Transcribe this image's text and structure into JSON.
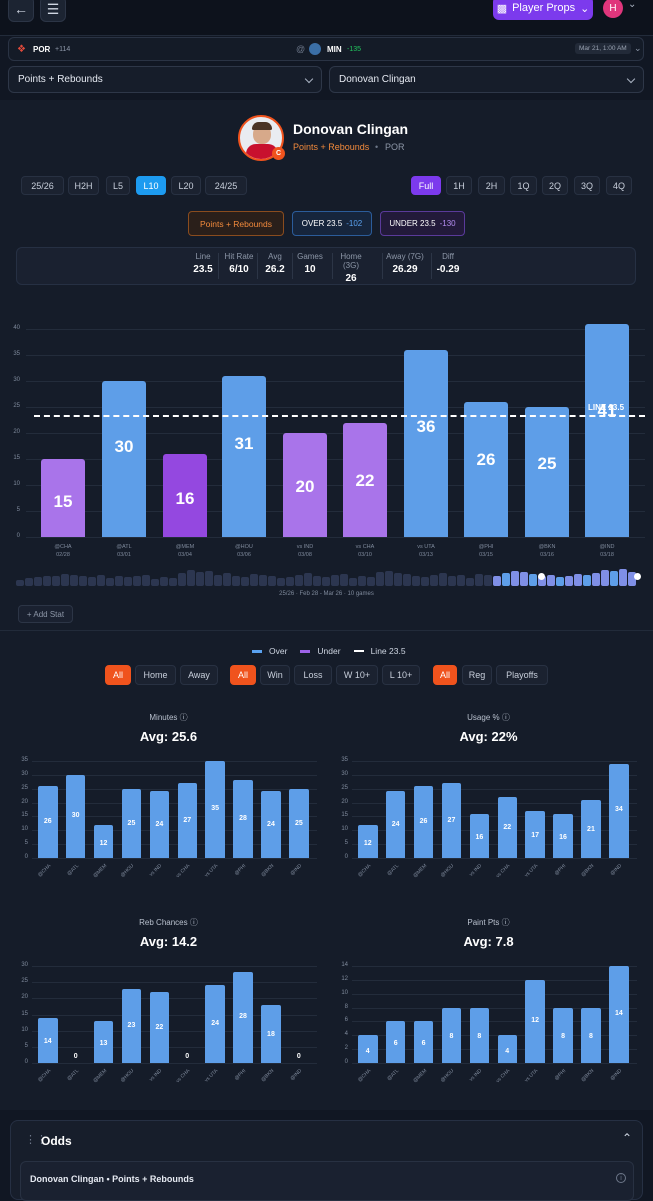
{
  "header": {
    "player_props_label": "Player Props",
    "avatar_initial": "H"
  },
  "matchup": {
    "away_team": "POR",
    "away_odds": "+114",
    "home_team": "MIN",
    "home_odds": "-135",
    "date": "Mar 21, 1:00 AM"
  },
  "selectors": {
    "market": "Points + Rebounds",
    "player": "Donovan Clingan"
  },
  "player": {
    "name": "Donovan Clingan",
    "market": "Points + Rebounds",
    "team": "POR",
    "position_badge": "C"
  },
  "range_tabs": [
    "25/26",
    "H2H",
    "L5",
    "L10",
    "L20",
    "24/25"
  ],
  "range_active": "L10",
  "period_tabs": [
    "Full",
    "1H",
    "2H",
    "1Q",
    "2Q",
    "3Q",
    "4Q"
  ],
  "period_active": "Full",
  "odds_pills": {
    "market": "Points + Rebounds",
    "over_label": "OVER 23.5",
    "over_odds": "-102",
    "under_label": "UNDER 23.5",
    "under_odds": "-130"
  },
  "stats": [
    {
      "label": "Line",
      "value": "23.5"
    },
    {
      "label": "Hit Rate",
      "value": "6/10"
    },
    {
      "label": "Avg",
      "value": "26.2"
    },
    {
      "label": "Games",
      "value": "10"
    },
    {
      "label": "Home (3G)",
      "value": "26"
    },
    {
      "label": "Away (7G)",
      "value": "26.29"
    },
    {
      "label": "Diff",
      "value": "-0.29"
    }
  ],
  "chart_data": {
    "type": "bar",
    "line": 23.5,
    "line_label": "LINE 23.5",
    "ylim": [
      0,
      40
    ],
    "yticks": [
      0,
      5,
      10,
      15,
      20,
      25,
      30,
      35,
      40
    ],
    "games": [
      {
        "opp": "@CHA",
        "date": "02/28",
        "value": 15,
        "result": "under"
      },
      {
        "opp": "@ATL",
        "date": "03/01",
        "value": 30,
        "result": "over"
      },
      {
        "opp": "@MEM",
        "date": "03/04",
        "value": 16,
        "result": "under"
      },
      {
        "opp": "@HOU",
        "date": "03/06",
        "value": 31,
        "result": "over"
      },
      {
        "opp": "vs IND",
        "date": "03/08",
        "value": 20,
        "result": "under"
      },
      {
        "opp": "vs CHA",
        "date": "03/10",
        "value": 22,
        "result": "under"
      },
      {
        "opp": "vs UTA",
        "date": "03/13",
        "value": 36,
        "result": "over"
      },
      {
        "opp": "@PHI",
        "date": "03/15",
        "value": 26,
        "result": "over"
      },
      {
        "opp": "@BKN",
        "date": "03/16",
        "value": 25,
        "result": "over"
      },
      {
        "opp": "@IND",
        "date": "03/18",
        "value": 41,
        "result": "over"
      }
    ]
  },
  "scrubber_caption": "25/26 · Feb 28 - Mar 26 · 10 games",
  "add_stat_label": "+ Add Stat",
  "legend": {
    "over": "Over",
    "under": "Under",
    "line": "Line 23.5"
  },
  "filters": {
    "group1": [
      "All",
      "Home",
      "Away"
    ],
    "group2": [
      "All",
      "Win",
      "Loss",
      "W 10+",
      "L 10+"
    ],
    "group3": [
      "All",
      "Reg",
      "Playoffs"
    ]
  },
  "small_charts": [
    {
      "title": "Minutes",
      "avg": "Avg: 25.6",
      "ymax": 35,
      "yticks": [
        0,
        5,
        10,
        15,
        20,
        25,
        30,
        35
      ],
      "values": [
        26,
        30,
        12,
        25,
        24,
        27,
        35,
        28,
        24,
        25
      ]
    },
    {
      "title": "Usage %",
      "avg": "Avg: 22%",
      "ymax": 35,
      "yticks": [
        0,
        5,
        10,
        15,
        20,
        25,
        30,
        35
      ],
      "values": [
        12,
        24,
        26,
        27,
        16,
        22,
        17,
        16,
        21,
        34
      ]
    },
    {
      "title": "Reb Chances",
      "avg": "Avg: 14.2",
      "ymax": 30,
      "yticks": [
        0,
        5,
        10,
        15,
        20,
        25,
        30
      ],
      "values": [
        14,
        0,
        13,
        23,
        22,
        0,
        24,
        28,
        18,
        0
      ]
    },
    {
      "title": "Paint Pts",
      "avg": "Avg: 7.8",
      "ymax": 14,
      "yticks": [
        0,
        2,
        4,
        6,
        8,
        10,
        12,
        14
      ],
      "values": [
        4,
        6,
        6,
        8,
        8,
        4,
        12,
        8,
        8,
        14
      ]
    }
  ],
  "small_x_labels": [
    "@CHA",
    "@ATL",
    "@MEM",
    "@HOU",
    "vs IND",
    "vs CHA",
    "vs UTA",
    "@PHI",
    "@BKN",
    "@IND"
  ],
  "odds": {
    "title": "Odds",
    "subtitle": "Donovan Clingan • Points + Rebounds"
  },
  "colors": {
    "over": "#5aa2f0",
    "under": "#9d63e8",
    "accent": "#7c3aed"
  }
}
